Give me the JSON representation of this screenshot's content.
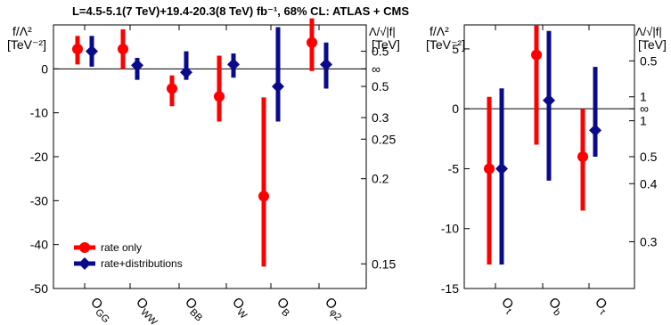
{
  "title": "L=4.5-5.1(7 TeV)+19.4-20.3(8 TeV) fb⁻¹, 68% CL: ATLAS + CMS",
  "colors": {
    "rate_only": "#ff0000",
    "rate_distributions": "#0a0a8c"
  },
  "chart_data": [
    {
      "type": "scatter",
      "ylabel_line1": "f/Λ²",
      "ylabel_line2": "[TeV⁻²]",
      "y2label_line1": "Λ/√|f|",
      "y2label_line2": "[TeV]",
      "ylim": [
        -50,
        10
      ],
      "yticks": [
        0,
        -10,
        -20,
        -30,
        -40,
        -50
      ],
      "y2ticks": [
        {
          "label": "0.5",
          "f": 4
        },
        {
          "label": "∞",
          "f": 0
        },
        {
          "label": "0.5",
          "f": -4
        },
        {
          "label": "0.3",
          "f": -11.1
        },
        {
          "label": "0.25",
          "f": -16
        },
        {
          "label": "0.2",
          "f": -25
        },
        {
          "label": "0.15",
          "f": -44.4
        }
      ],
      "categories": [
        "O_GG",
        "O_WW",
        "O_BB",
        "O_W",
        "O_B",
        "O_φ2"
      ],
      "category_labels": [
        {
          "main": "O",
          "sub": "GG"
        },
        {
          "main": "O",
          "sub": "WW"
        },
        {
          "main": "O",
          "sub": "BB"
        },
        {
          "main": "O",
          "sub": "W"
        },
        {
          "main": "O",
          "sub": "B"
        },
        {
          "main": "O",
          "sub": "φ2"
        }
      ],
      "legend": {
        "placement": "bottom-left",
        "entries": [
          "rate only",
          "rate+distributions"
        ]
      },
      "series": [
        {
          "name": "rate only",
          "marker": "circle",
          "values": [
            4.5,
            4.5,
            -4.5,
            -6.3,
            -29,
            6
          ],
          "low": [
            1,
            0,
            -8.5,
            -12,
            -45,
            -0.5
          ],
          "high": [
            7.5,
            9,
            -1.5,
            3,
            -6.5,
            11.5
          ]
        },
        {
          "name": "rate+distributions",
          "marker": "diamond",
          "values": [
            4,
            0.8,
            -0.8,
            1,
            -4,
            1
          ],
          "low": [
            0.5,
            -2.5,
            -2.5,
            -2,
            -12,
            -4.5
          ],
          "high": [
            7.5,
            2.5,
            4,
            3.5,
            9.5,
            6
          ]
        }
      ]
    },
    {
      "type": "scatter",
      "ylabel_line1": "f/Λ²",
      "ylabel_line2": "[TeV⁻²]",
      "y2label_line1": "Λ/√|f|",
      "y2label_line2": "[TeV]",
      "ylim": [
        -15,
        7
      ],
      "yticks": [
        5,
        0,
        -5,
        -10,
        -15
      ],
      "y2ticks": [
        {
          "label": "0.5",
          "f": 4
        },
        {
          "label": "1",
          "f": 1
        },
        {
          "label": "∞",
          "f": 0
        },
        {
          "label": "1",
          "f": -1
        },
        {
          "label": "0.5",
          "f": -4
        },
        {
          "label": "0.4",
          "f": -6.25
        },
        {
          "label": "0.3",
          "f": -11.1
        }
      ],
      "categories": [
        "O_t",
        "O_b",
        "O_τ"
      ],
      "category_labels": [
        {
          "main": "O",
          "sub": "t"
        },
        {
          "main": "O",
          "sub": "b"
        },
        {
          "main": "O",
          "sub": "τ"
        }
      ],
      "series": [
        {
          "name": "rate only",
          "marker": "circle",
          "values": [
            -5,
            4.5,
            -4
          ],
          "low": [
            -13,
            -3,
            -8.5
          ],
          "high": [
            1,
            7,
            0
          ]
        },
        {
          "name": "rate+distributions",
          "marker": "diamond",
          "values": [
            -5,
            0.7,
            -1.8
          ],
          "low": [
            -13,
            -6,
            -4
          ],
          "high": [
            1.7,
            6.5,
            3.5
          ]
        }
      ]
    }
  ]
}
